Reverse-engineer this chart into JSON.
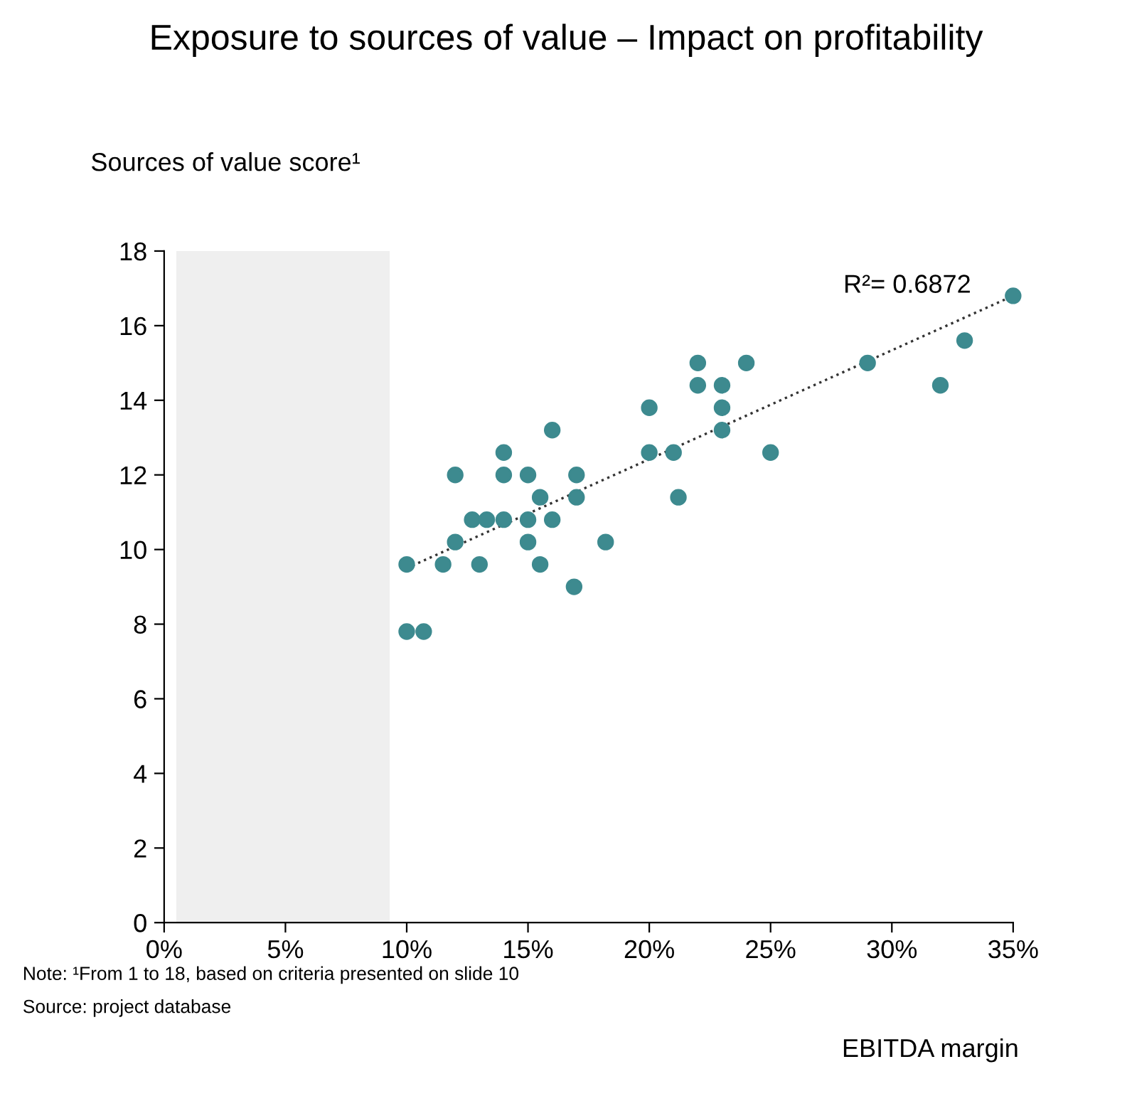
{
  "chart_data": {
    "type": "scatter",
    "title": "Exposure to sources of value – Impact on profitability",
    "ylabel": "Sources of value score¹",
    "xlabel": "EBITDA margin",
    "series": [
      {
        "color": "#3d8a8f",
        "marker": "circle",
        "x": [
          10,
          10,
          10.7,
          11.5,
          12,
          12,
          12.7,
          13.3,
          13,
          14,
          14,
          14,
          15,
          15,
          15,
          15.5,
          15.5,
          16,
          16,
          16.9,
          17,
          17,
          18.2,
          20,
          20,
          21,
          21.2,
          22,
          22,
          23,
          23,
          23,
          24,
          25,
          29,
          32,
          33,
          35
        ],
        "values": [
          9.6,
          7.8,
          7.8,
          9.6,
          10.2,
          12,
          10.8,
          10.8,
          9.6,
          12.6,
          12,
          10.8,
          12,
          10.8,
          10.2,
          11.4,
          9.6,
          13.2,
          10.8,
          9,
          12,
          11.4,
          10.2,
          13.8,
          12.6,
          12.6,
          11.4,
          15,
          14.4,
          14.4,
          13.8,
          13.2,
          15,
          12.6,
          15,
          14.4,
          15.6,
          16.8
        ]
      },
      {
        "type": "line",
        "color": "#333333",
        "line_style": "dotted",
        "x": [
          10,
          35
        ],
        "values": [
          9.5,
          16.8
        ]
      }
    ],
    "xlim": [
      0,
      35
    ],
    "ylim": [
      0,
      18
    ],
    "xticks": [
      {
        "value": 0,
        "label": "0%"
      },
      {
        "value": 5,
        "label": "5%"
      },
      {
        "value": 10,
        "label": "10%"
      },
      {
        "value": 15,
        "label": "15%"
      },
      {
        "value": 20,
        "label": "20%"
      },
      {
        "value": 25,
        "label": "25%"
      },
      {
        "value": 30,
        "label": "30%"
      },
      {
        "value": 35,
        "label": "35%"
      }
    ],
    "yticks": [
      0,
      2,
      4,
      6,
      8,
      10,
      12,
      14,
      16,
      18
    ],
    "bands": [
      {
        "axis": "x",
        "from": 0.5,
        "to": 9.3,
        "color": "#efefef"
      }
    ],
    "annotations": [
      "R²= 0.6872",
      "Note: ¹From 1 to 18, based on criteria presented on slide 10",
      "Source: project database"
    ],
    "grid": false,
    "legend": false
  }
}
